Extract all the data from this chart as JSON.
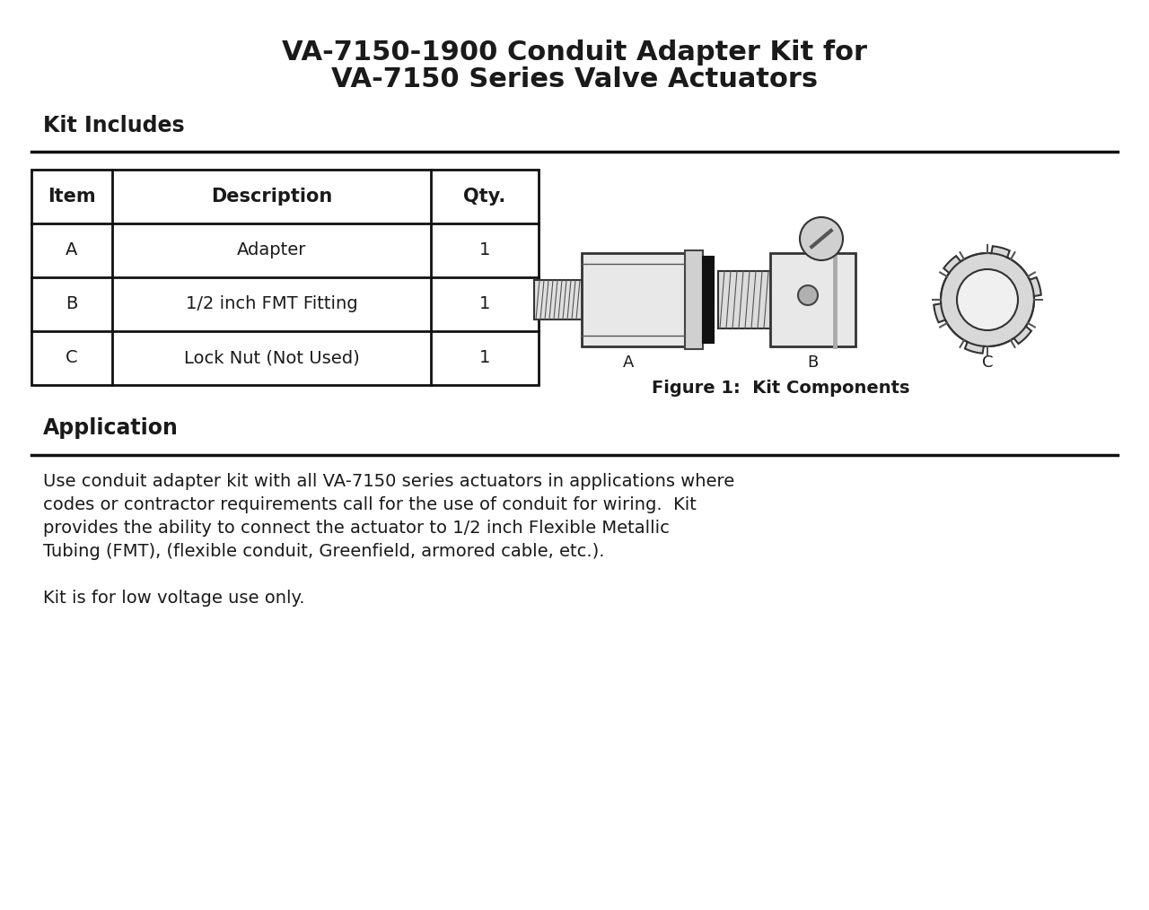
{
  "title_line1": "VA-7150-1900 Conduit Adapter Kit for",
  "title_line2": "VA-7150 Series Valve Actuators",
  "section1_header": "Kit Includes",
  "section2_header": "Application",
  "table_headers": [
    "Item",
    "Description",
    "Qty."
  ],
  "table_rows": [
    [
      "A",
      "Adapter",
      "1"
    ],
    [
      "B",
      "1/2 inch FMT Fitting",
      "1"
    ],
    [
      "C",
      "Lock Nut (Not Used)",
      "1"
    ]
  ],
  "figure_caption": "Figure 1:  Kit Components",
  "app_lines": [
    "Use conduit adapter kit with all VA-7150 series actuators in applications where",
    "codes or contractor requirements call for the use of conduit for wiring.  Kit",
    "provides the ability to connect the actuator to 1/2 inch Flexible Metallic",
    "Tubing (FMT), (flexible conduit, Greenfield, armored cable, etc.).",
    "",
    "Kit is for low voltage use only."
  ],
  "bg_color": "#ffffff",
  "text_color": "#1a1a1a",
  "line_color": "#111111",
  "title_fontsize": 22,
  "header_fontsize": 17,
  "table_header_fontsize": 15,
  "table_body_fontsize": 14,
  "body_fontsize": 14,
  "fig_caption_fontsize": 14,
  "label_fontsize": 13
}
